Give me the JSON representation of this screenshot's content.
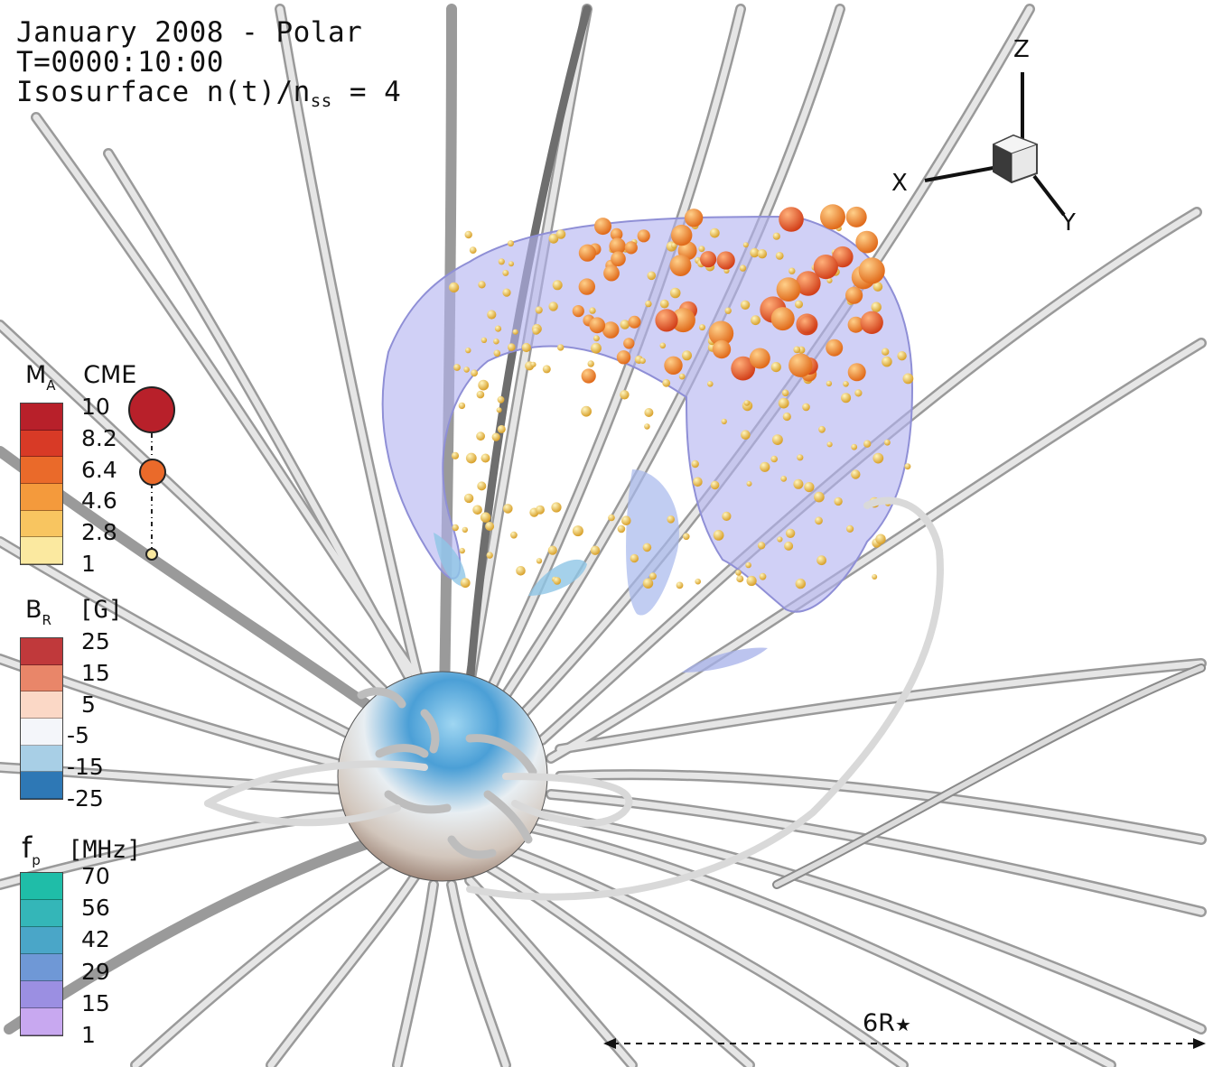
{
  "title": {
    "line1": "January 2008 - Polar",
    "line2": "T=0000:10:00",
    "line3_main": "Isosurface n(t)/n",
    "line3_sub": "ss",
    "line3_tail": " = 4"
  },
  "legend_mach": {
    "label_main": "M",
    "label_sub": "A",
    "label_cme": "CME",
    "ticks": [
      "10",
      "8.2",
      "6.4",
      "4.6",
      "2.8",
      "1"
    ],
    "colors": [
      "#b8202a",
      "#d83a26",
      "#ea6a2a",
      "#f49a3c",
      "#f8c560",
      "#fbe9a0"
    ]
  },
  "legend_br": {
    "label_main": "B",
    "label_sub": "R",
    "label_unit": "[G]",
    "ticks": [
      "25",
      "15",
      "5",
      "-5",
      "-15",
      "-25"
    ],
    "colors": [
      "#c0393b",
      "#e98669",
      "#fbd8c6",
      "#f4f6fa",
      "#a8cfe6",
      "#2e78b5"
    ]
  },
  "legend_fp": {
    "label_main": "f",
    "label_sub": "p",
    "label_unit": "[MHz]",
    "ticks": [
      "70",
      "56",
      "42",
      "29",
      "15",
      "1"
    ],
    "colors": [
      "#1fbda8",
      "#34b6b8",
      "#4aa6c8",
      "#6f98d6",
      "#9b8fe2",
      "#c8a8f0"
    ]
  },
  "axes": {
    "z": "Z",
    "x": "X",
    "y": "Y"
  },
  "scale": {
    "label_main": "6R",
    "label_star": "★"
  }
}
